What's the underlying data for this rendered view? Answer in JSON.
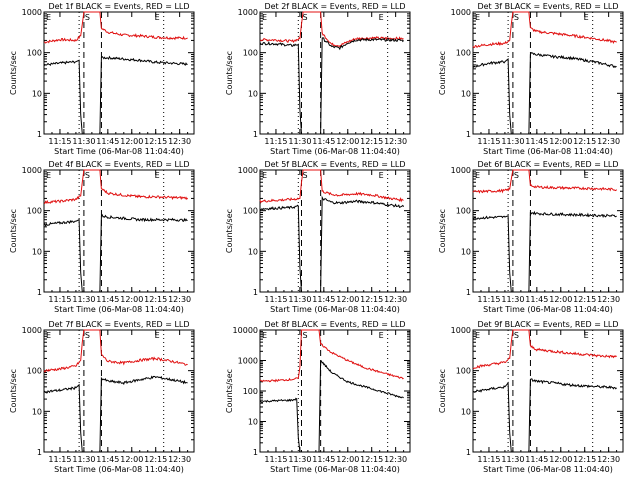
{
  "time_ticks": [
    "11:15",
    "11:30",
    "11:45",
    "12:00",
    "12:15",
    "12:30"
  ],
  "x_label": "Start Time (06-Mar-08 11:04:40)",
  "y_label": "Counts/sec",
  "marker_letters": {
    "E": "E",
    "S": "S"
  },
  "colors": {
    "events": "#000000",
    "lld": "#e01010"
  },
  "chart_data": [
    {
      "type": "line",
      "title": "Det 1f BLACK = Events, RED = LLD",
      "ylim": [
        1,
        1000
      ],
      "yscale": "log",
      "y_ticks": [
        "1",
        "10",
        "100",
        "1000"
      ],
      "series": [
        {
          "color": "red",
          "x": [
            "11:05",
            "11:15",
            "11:25",
            "11:28",
            "11:29",
            "11:30",
            "11:38",
            "11:40",
            "11:41",
            "11:45",
            "11:55",
            "12:05",
            "12:15",
            "12:25",
            "12:35"
          ],
          "values": [
            180,
            210,
            200,
            260,
            500,
            1000,
            1000,
            1000,
            400,
            320,
            270,
            260,
            240,
            230,
            230
          ]
        },
        {
          "color": "black",
          "x": [
            "11:05",
            "11:15",
            "11:25",
            "11:27",
            "11:28",
            "11:29",
            "11:38",
            "11:40",
            "11:41",
            "11:45",
            "11:55",
            "12:05",
            "12:15",
            "12:25",
            "12:35"
          ],
          "values": [
            50,
            55,
            60,
            65,
            3,
            1,
            1,
            1,
            75,
            75,
            70,
            65,
            58,
            55,
            52
          ]
        }
      ]
    },
    {
      "type": "line",
      "title": "Det 2f BLACK = Events, RED = LLD",
      "ylim": [
        1,
        1000
      ],
      "yscale": "log",
      "y_ticks": [
        "1",
        "10",
        "100",
        "1000"
      ],
      "series": [
        {
          "color": "red",
          "x": [
            "11:05",
            "11:15",
            "11:25",
            "11:30",
            "11:31",
            "11:32",
            "11:41",
            "11:43",
            "11:44",
            "11:50",
            "11:55",
            "12:00",
            "12:05",
            "12:15",
            "12:25",
            "12:35"
          ],
          "values": [
            210,
            205,
            190,
            220,
            500,
            1000,
            1000,
            1000,
            300,
            160,
            150,
            185,
            220,
            230,
            225,
            220
          ]
        },
        {
          "color": "black",
          "x": [
            "11:05",
            "11:15",
            "11:25",
            "11:29",
            "11:30",
            "11:31",
            "11:41",
            "11:43",
            "11:44",
            "11:50",
            "11:55",
            "12:00",
            "12:05",
            "12:15",
            "12:25",
            "12:35"
          ],
          "values": [
            170,
            165,
            150,
            160,
            4,
            1,
            1,
            1,
            230,
            140,
            130,
            175,
            205,
            210,
            205,
            200
          ]
        }
      ]
    },
    {
      "type": "line",
      "title": "Det 3f BLACK = Events, RED = LLD",
      "ylim": [
        1,
        1000
      ],
      "yscale": "log",
      "y_ticks": [
        "1",
        "10",
        "100",
        "1000"
      ],
      "series": [
        {
          "color": "red",
          "x": [
            "11:05",
            "11:15",
            "11:25",
            "11:28",
            "11:29",
            "11:30",
            "11:38",
            "11:40",
            "11:41",
            "11:45",
            "11:55",
            "12:05",
            "12:15",
            "12:25",
            "12:35"
          ],
          "values": [
            140,
            160,
            170,
            200,
            500,
            1000,
            1000,
            1000,
            400,
            330,
            300,
            270,
            240,
            210,
            180
          ]
        },
        {
          "color": "black",
          "x": [
            "11:05",
            "11:15",
            "11:25",
            "11:27",
            "11:28",
            "11:29",
            "11:38",
            "11:40",
            "11:41",
            "11:45",
            "11:55",
            "12:05",
            "12:15",
            "12:25",
            "12:35"
          ],
          "values": [
            45,
            55,
            60,
            70,
            3,
            1,
            1,
            1,
            95,
            90,
            80,
            75,
            65,
            55,
            45
          ]
        }
      ]
    },
    {
      "type": "line",
      "title": "Det 4f BLACK = Events, RED = LLD",
      "ylim": [
        1,
        1000
      ],
      "yscale": "log",
      "y_ticks": [
        "1",
        "10",
        "100",
        "1000"
      ],
      "series": [
        {
          "color": "red",
          "x": [
            "11:05",
            "11:15",
            "11:25",
            "11:28",
            "11:29",
            "11:30",
            "11:38",
            "11:40",
            "11:41",
            "11:45",
            "11:55",
            "12:05",
            "12:15",
            "12:25",
            "12:35"
          ],
          "values": [
            160,
            170,
            190,
            230,
            500,
            1000,
            1000,
            1000,
            350,
            270,
            240,
            220,
            220,
            210,
            205
          ]
        },
        {
          "color": "black",
          "x": [
            "11:05",
            "11:15",
            "11:25",
            "11:27",
            "11:28",
            "11:29",
            "11:38",
            "11:40",
            "11:41",
            "11:45",
            "11:55",
            "12:05",
            "12:15",
            "12:25",
            "12:35"
          ],
          "values": [
            45,
            50,
            55,
            60,
            3,
            1,
            1,
            1,
            75,
            70,
            65,
            60,
            60,
            60,
            58
          ]
        }
      ]
    },
    {
      "type": "line",
      "title": "Det 5f BLACK = Events, RED = LLD",
      "ylim": [
        1,
        1000
      ],
      "yscale": "log",
      "y_ticks": [
        "1",
        "10",
        "100",
        "1000"
      ],
      "series": [
        {
          "color": "red",
          "x": [
            "11:05",
            "11:15",
            "11:25",
            "11:30",
            "11:31",
            "11:32",
            "11:41",
            "11:43",
            "11:44",
            "11:50",
            "11:55",
            "12:05",
            "12:15",
            "12:25",
            "12:35"
          ],
          "values": [
            170,
            180,
            190,
            200,
            500,
            1000,
            1000,
            1000,
            300,
            250,
            240,
            260,
            245,
            205,
            180
          ]
        },
        {
          "color": "black",
          "x": [
            "11:05",
            "11:15",
            "11:25",
            "11:29",
            "11:30",
            "11:31",
            "11:41",
            "11:43",
            "11:44",
            "11:50",
            "11:55",
            "12:05",
            "12:15",
            "12:25",
            "12:35"
          ],
          "values": [
            110,
            115,
            120,
            130,
            4,
            1,
            1,
            1,
            200,
            160,
            155,
            170,
            160,
            140,
            125
          ]
        }
      ]
    },
    {
      "type": "line",
      "title": "Det 6f BLACK = Events, RED = LLD",
      "ylim": [
        1,
        1000
      ],
      "yscale": "log",
      "y_ticks": [
        "1",
        "10",
        "100",
        "1000"
      ],
      "series": [
        {
          "color": "red",
          "x": [
            "11:05",
            "11:15",
            "11:25",
            "11:28",
            "11:29",
            "11:30",
            "11:38",
            "11:40",
            "11:41",
            "11:45",
            "11:55",
            "12:05",
            "12:15",
            "12:25",
            "12:35"
          ],
          "values": [
            290,
            300,
            310,
            340,
            600,
            1000,
            1000,
            1000,
            420,
            380,
            370,
            360,
            355,
            345,
            330
          ]
        },
        {
          "color": "black",
          "x": [
            "11:05",
            "11:15",
            "11:25",
            "11:27",
            "11:28",
            "11:29",
            "11:38",
            "11:40",
            "11:41",
            "11:45",
            "11:55",
            "12:05",
            "12:15",
            "12:25",
            "12:35"
          ],
          "values": [
            65,
            68,
            70,
            75,
            3,
            1,
            1,
            1,
            90,
            85,
            82,
            80,
            78,
            76,
            74
          ]
        }
      ]
    },
    {
      "type": "line",
      "title": "Det 7f BLACK = Events, RED = LLD",
      "ylim": [
        1,
        1000
      ],
      "yscale": "log",
      "y_ticks": [
        "1",
        "10",
        "100",
        "1000"
      ],
      "series": [
        {
          "color": "red",
          "x": [
            "11:05",
            "11:15",
            "11:25",
            "11:28",
            "11:29",
            "11:30",
            "11:38",
            "11:40",
            "11:41",
            "11:45",
            "11:55",
            "12:05",
            "12:15",
            "12:25",
            "12:35"
          ],
          "values": [
            100,
            110,
            130,
            180,
            500,
            1000,
            1000,
            1000,
            250,
            170,
            155,
            180,
            200,
            170,
            140
          ]
        },
        {
          "color": "black",
          "x": [
            "11:05",
            "11:15",
            "11:25",
            "11:27",
            "11:28",
            "11:29",
            "11:38",
            "11:40",
            "11:41",
            "11:45",
            "11:55",
            "12:05",
            "12:15",
            "12:25",
            "12:35"
          ],
          "values": [
            30,
            33,
            38,
            45,
            3,
            1,
            1,
            1,
            65,
            55,
            50,
            60,
            70,
            60,
            50
          ]
        }
      ]
    },
    {
      "type": "line",
      "title": "Det 8f BLACK = Events, RED = LLD",
      "ylim": [
        1,
        10000
      ],
      "yscale": "log",
      "y_ticks": [
        "1",
        "10",
        "100",
        "1000",
        "10000"
      ],
      "series": [
        {
          "color": "red",
          "x": [
            "11:05",
            "11:15",
            "11:25",
            "11:29",
            "11:30",
            "11:31",
            "11:40",
            "11:42",
            "11:43",
            "11:50",
            "12:00",
            "12:10",
            "12:20",
            "12:30",
            "12:35"
          ],
          "values": [
            210,
            220,
            240,
            260,
            600,
            10000,
            10000,
            10000,
            3500,
            1800,
            1000,
            600,
            420,
            300,
            260
          ]
        },
        {
          "color": "black",
          "x": [
            "11:05",
            "11:15",
            "11:25",
            "11:28",
            "11:29",
            "11:30",
            "11:40",
            "11:42",
            "11:43",
            "11:50",
            "12:00",
            "12:10",
            "12:20",
            "12:30",
            "12:35"
          ],
          "values": [
            45,
            48,
            50,
            55,
            3,
            1,
            1,
            1,
            1000,
            400,
            200,
            140,
            100,
            70,
            60
          ]
        }
      ]
    },
    {
      "type": "line",
      "title": "Det 9f BLACK = Events, RED = LLD",
      "ylim": [
        1,
        1000
      ],
      "yscale": "log",
      "y_ticks": [
        "1",
        "10",
        "100",
        "1000"
      ],
      "series": [
        {
          "color": "red",
          "x": [
            "11:05",
            "11:15",
            "11:25",
            "11:28",
            "11:29",
            "11:30",
            "11:38",
            "11:40",
            "11:41",
            "11:45",
            "11:55",
            "12:05",
            "12:15",
            "12:25",
            "12:35"
          ],
          "values": [
            120,
            140,
            160,
            200,
            500,
            1000,
            1000,
            1000,
            400,
            330,
            300,
            270,
            250,
            230,
            220
          ]
        },
        {
          "color": "black",
          "x": [
            "11:05",
            "11:15",
            "11:25",
            "11:27",
            "11:28",
            "11:29",
            "11:38",
            "11:40",
            "11:41",
            "11:45",
            "11:55",
            "12:05",
            "12:15",
            "12:25",
            "12:35"
          ],
          "values": [
            30,
            35,
            40,
            50,
            3,
            1,
            1,
            1,
            60,
            55,
            50,
            45,
            42,
            40,
            38
          ]
        }
      ]
    }
  ]
}
